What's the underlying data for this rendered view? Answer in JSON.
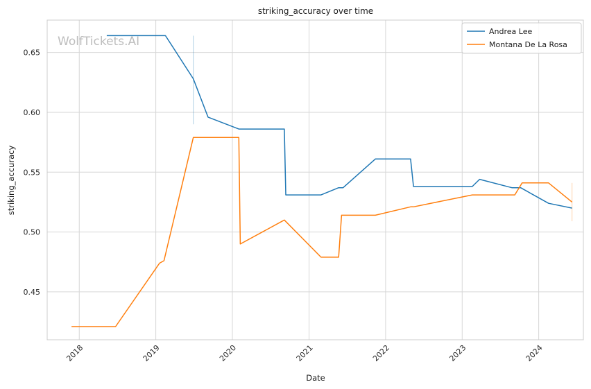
{
  "chart_data": {
    "type": "line",
    "title": "striking_accuracy over time",
    "xlabel": "Date",
    "ylabel": "striking_accuracy",
    "watermark": "WolfTickets.AI",
    "xlim": [
      "2017-08-01",
      "2024-08-01"
    ],
    "ylim": [
      0.41,
      0.677
    ],
    "x_ticks": [
      "2018",
      "2019",
      "2020",
      "2021",
      "2022",
      "2023",
      "2024"
    ],
    "y_ticks": [
      "0.45",
      "0.50",
      "0.55",
      "0.60",
      "0.65"
    ],
    "grid": true,
    "legend_position": "top-right",
    "series": [
      {
        "name": "Andrea Lee",
        "color": "#1f77b4",
        "x": [
          "2018-05-12",
          "2019-02-16",
          "2019-06-29",
          "2019-09-07",
          "2020-02-01",
          "2020-09-05",
          "2020-09-12",
          "2021-02-27",
          "2021-05-22",
          "2021-06-12",
          "2021-11-13",
          "2022-04-30",
          "2022-05-14",
          "2023-02-18",
          "2023-03-25",
          "2023-08-26",
          "2023-10-07",
          "2024-02-17",
          "2024-06-08"
        ],
        "y": [
          0.664,
          0.664,
          0.628,
          0.596,
          0.586,
          0.586,
          0.531,
          0.531,
          0.537,
          0.537,
          0.561,
          0.561,
          0.538,
          0.538,
          0.544,
          0.537,
          0.537,
          0.524,
          0.52
        ],
        "errorbars": [
          {
            "x": "2019-06-29",
            "low": 0.59,
            "high": 0.664
          }
        ]
      },
      {
        "name": "Montana De La Rosa",
        "color": "#ff7f0e",
        "x": [
          "2017-11-25",
          "2018-06-23",
          "2019-01-19",
          "2019-02-09",
          "2019-06-29",
          "2020-02-01",
          "2020-02-08",
          "2020-09-05",
          "2021-02-27",
          "2021-05-22",
          "2021-06-05",
          "2021-11-13",
          "2022-04-30",
          "2022-05-14",
          "2023-02-18",
          "2023-03-25",
          "2023-09-09",
          "2023-10-14",
          "2024-02-17",
          "2024-06-08"
        ],
        "y": [
          0.421,
          0.421,
          0.474,
          0.476,
          0.579,
          0.579,
          0.49,
          0.51,
          0.479,
          0.479,
          0.514,
          0.514,
          0.521,
          0.521,
          0.531,
          0.531,
          0.531,
          0.541,
          0.541,
          0.525
        ],
        "errorbars": [
          {
            "x": "2024-06-08",
            "low": 0.509,
            "high": 0.541
          }
        ]
      }
    ]
  }
}
